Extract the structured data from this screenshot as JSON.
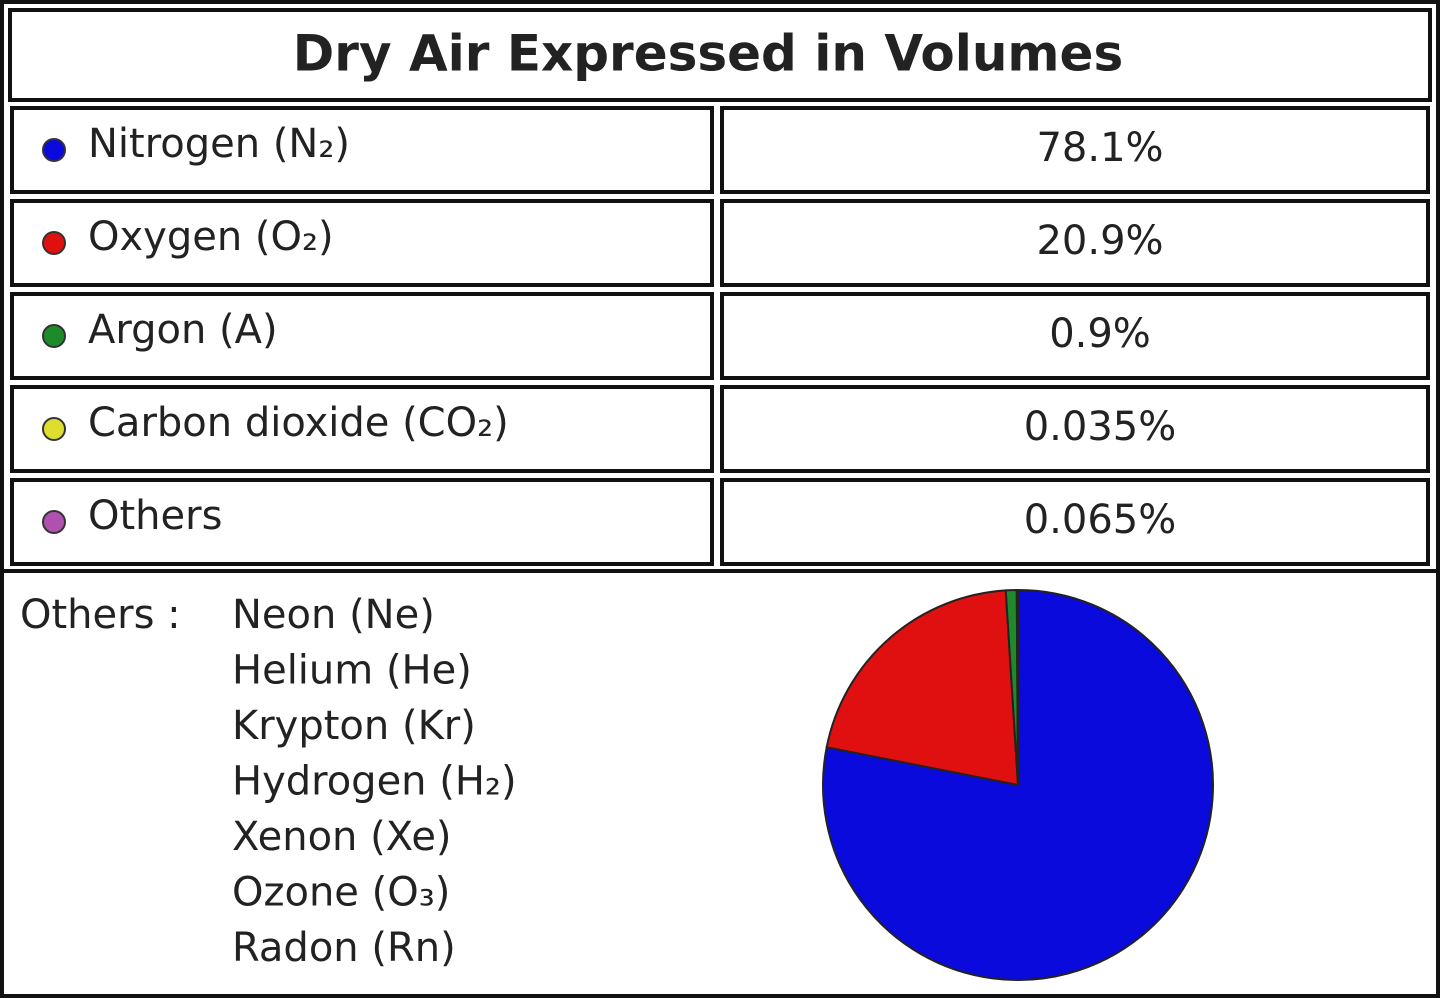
{
  "chart_data": {
    "type": "pie",
    "title": "Dry Air Expressed in Volumes",
    "categories": [
      "Nitrogen (N₂)",
      "Oxygen (O₂)",
      "Argon (A)",
      "Carbon dioxide (CO₂)",
      "Others"
    ],
    "values": [
      78.1,
      20.9,
      0.9,
      0.035,
      0.065
    ],
    "value_labels": [
      "78.1%",
      "20.9%",
      "0.9%",
      "0.035%",
      "0.065%"
    ],
    "colors": [
      "#0a0adc",
      "#e01010",
      "#1f8a2a",
      "#dede30",
      "#b050b0"
    ]
  },
  "others_note": {
    "label": "Others :",
    "items": [
      "Neon (Ne)",
      "Helium (He)",
      "Krypton (Kr)",
      "Hydrogen (H₂)",
      "Xenon (Xe)",
      "Ozone (O₃)",
      "Radon (Rn)"
    ]
  }
}
